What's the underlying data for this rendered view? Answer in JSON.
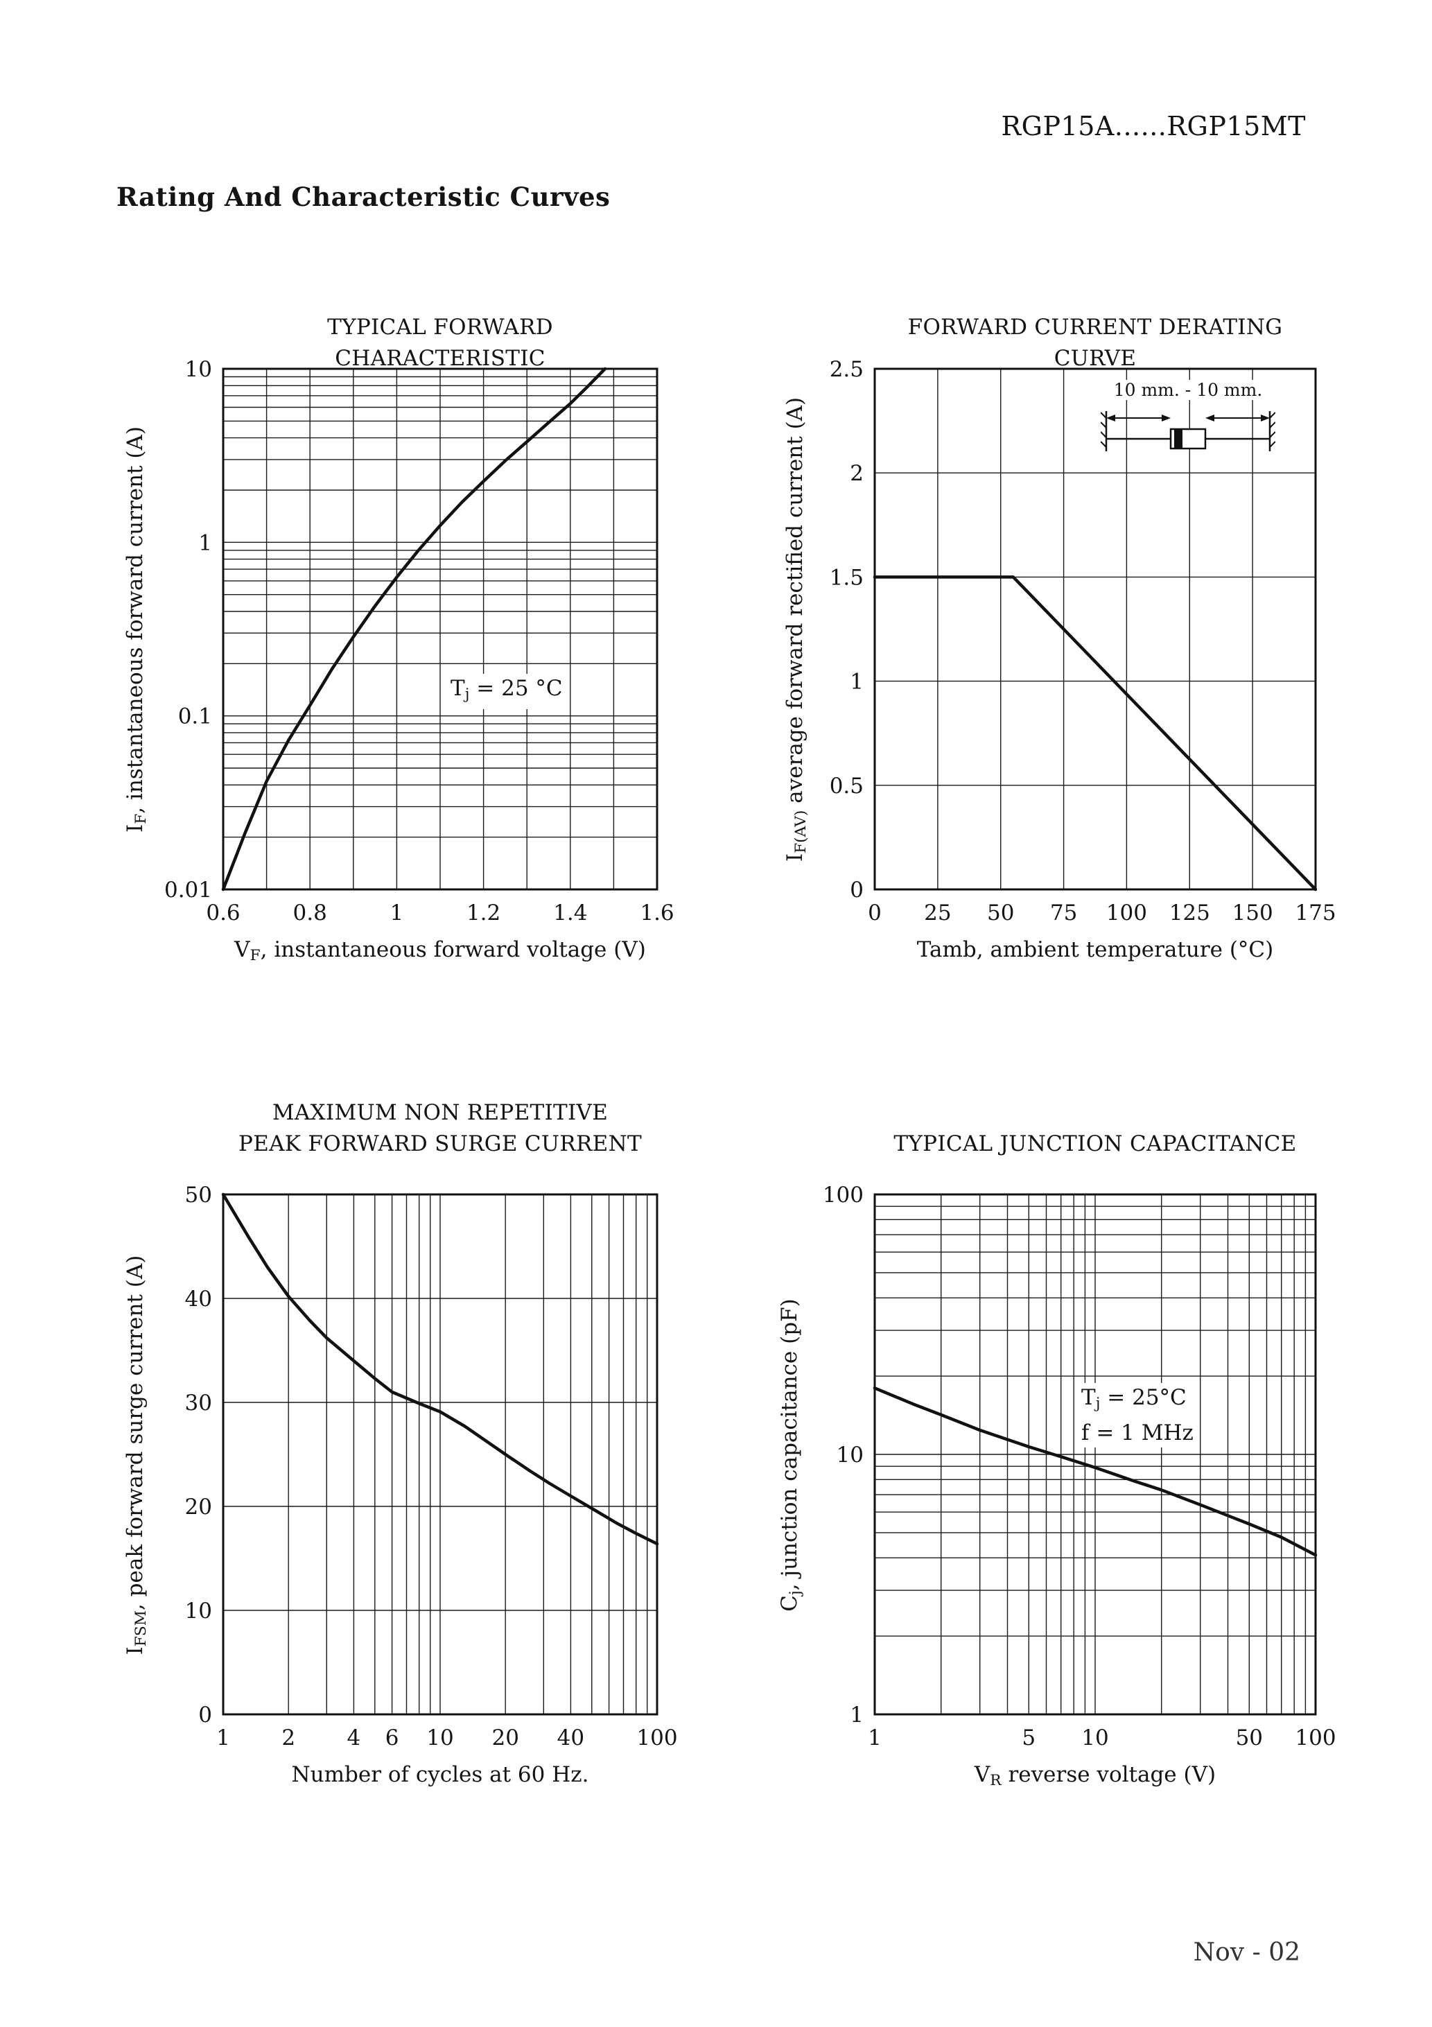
{
  "page": {
    "header": "RGP15A......RGP15MT",
    "title": "Rating And Characteristic Curves",
    "footer": "Nov - 02"
  },
  "chart_data": [
    {
      "id": "typical-forward-characteristic",
      "type": "line",
      "title": "TYPICAL FORWARD CHARACTERISTIC",
      "xlabel": "VF, instantaneous forward voltage (V)",
      "ylabel": "IF, instantaneous forward current (A)",
      "xlabel_segments": [
        {
          "t": "V"
        },
        {
          "t": "F",
          "sub": true
        },
        {
          "t": ", instantaneous forward voltage  (V)"
        }
      ],
      "ylabel_segments": [
        {
          "t": "I"
        },
        {
          "t": "F",
          "sub": true
        },
        {
          "t": ", instantaneous forward current  (A)"
        }
      ],
      "annotation": [
        {
          "t": "T"
        },
        {
          "t": "j",
          "sub": true
        },
        {
          "t": " = 25 °C"
        }
      ],
      "x": {
        "type": "linear",
        "min": 0.6,
        "max": 1.6,
        "ticks": [
          0.6,
          0.8,
          1,
          1.2,
          1.4,
          1.6
        ],
        "tick_labels": [
          "0.6",
          "0.8",
          "1",
          "1.2",
          "1.4",
          "1.6"
        ],
        "grid": [
          0.7,
          0.8,
          0.9,
          1,
          1.1,
          1.2,
          1.3,
          1.4,
          1.5
        ]
      },
      "y": {
        "type": "log",
        "min": 0.01,
        "max": 10,
        "ticks": [
          0.01,
          0.1,
          1,
          10
        ],
        "tick_labels": [
          "0.01",
          "0.1",
          "1",
          "10"
        ],
        "grid": [
          0.02,
          0.03,
          0.04,
          0.05,
          0.06,
          0.07,
          0.08,
          0.09,
          0.1,
          0.2,
          0.3,
          0.4,
          0.5,
          0.6,
          0.7,
          0.8,
          0.9,
          1,
          2,
          3,
          4,
          5,
          6,
          7,
          8,
          9
        ]
      },
      "series": [
        {
          "name": "instantaneous forward current",
          "points": [
            [
              0.6,
              0.01
            ],
            [
              0.65,
              0.021
            ],
            [
              0.7,
              0.042
            ],
            [
              0.75,
              0.072
            ],
            [
              0.8,
              0.115
            ],
            [
              0.85,
              0.185
            ],
            [
              0.9,
              0.285
            ],
            [
              0.95,
              0.43
            ],
            [
              1.0,
              0.63
            ],
            [
              1.05,
              0.9
            ],
            [
              1.1,
              1.25
            ],
            [
              1.15,
              1.7
            ],
            [
              1.2,
              2.25
            ],
            [
              1.25,
              2.95
            ],
            [
              1.3,
              3.8
            ],
            [
              1.35,
              4.9
            ],
            [
              1.4,
              6.3
            ],
            [
              1.44,
              7.9
            ],
            [
              1.48,
              10
            ]
          ]
        }
      ]
    },
    {
      "id": "forward-current-derating-curve",
      "type": "line",
      "title": "FORWARD CURRENT DERATING CURVE",
      "xlabel": "Tamb, ambient temperature (°C)",
      "ylabel": "IF(AV) average forward rectified current (A)",
      "xlabel_segments": [
        {
          "t": "Tamb, ambient temperature (°C)"
        }
      ],
      "ylabel_segments": [
        {
          "t": "I"
        },
        {
          "t": "F(AV)",
          "sub": true
        },
        {
          "t": " average forward rectified current (A)"
        }
      ],
      "inset_label": "10 mm. - 10 mm.",
      "x": {
        "type": "linear",
        "min": 0,
        "max": 175,
        "ticks": [
          0,
          25,
          50,
          75,
          100,
          125,
          150,
          175
        ],
        "tick_labels": [
          "0",
          "25",
          "50",
          "75",
          "100",
          "125",
          "150",
          "175"
        ],
        "grid": [
          25,
          50,
          75,
          100,
          125,
          150
        ]
      },
      "y": {
        "type": "linear",
        "min": 0,
        "max": 2.5,
        "ticks": [
          0,
          0.5,
          1,
          1.5,
          2,
          2.5
        ],
        "tick_labels": [
          "0",
          "0.5",
          "1",
          "1.5",
          "2",
          "2.5"
        ],
        "grid": [
          0.5,
          1,
          1.5,
          2
        ]
      },
      "series": [
        {
          "name": "average forward rectified current",
          "points": [
            [
              0,
              1.5
            ],
            [
              55,
              1.5
            ],
            [
              175,
              0
            ]
          ]
        }
      ]
    },
    {
      "id": "maximum-non-repetitive-peak-forward-surge-current",
      "type": "line",
      "title": "MAXIMUM NON REPETITIVE",
      "title2": "PEAK FORWARD SURGE CURRENT",
      "xlabel": "Number of cycles at 60 Hz.",
      "ylabel": "IFSM, peak forward surge current (A)",
      "xlabel_segments": [
        {
          "t": "Number of cycles at 60 Hz."
        }
      ],
      "ylabel_segments": [
        {
          "t": "I"
        },
        {
          "t": "FSM",
          "sub": true
        },
        {
          "t": ", peak forward surge current (A)"
        }
      ],
      "x": {
        "type": "log",
        "min": 1,
        "max": 100,
        "ticks": [
          1,
          2,
          4,
          6,
          10,
          20,
          40,
          100
        ],
        "tick_labels": [
          "1",
          "2",
          "4",
          "6",
          "10",
          "20",
          "40",
          "100"
        ],
        "grid": [
          2,
          3,
          4,
          5,
          6,
          7,
          8,
          9,
          10,
          20,
          30,
          40,
          50,
          60,
          70,
          80,
          90
        ]
      },
      "y": {
        "type": "linear",
        "min": 0,
        "max": 50,
        "ticks": [
          0,
          10,
          20,
          30,
          40,
          50
        ],
        "tick_labels": [
          "0",
          "10",
          "20",
          "30",
          "40",
          "50"
        ],
        "grid": [
          10,
          20,
          30,
          40
        ]
      },
      "series": [
        {
          "name": "peak forward surge current",
          "points": [
            [
              1,
              50
            ],
            [
              1.3,
              46
            ],
            [
              1.6,
              43
            ],
            [
              2,
              40.2
            ],
            [
              2.5,
              37.9
            ],
            [
              3,
              36.2
            ],
            [
              4,
              34
            ],
            [
              5,
              32.3
            ],
            [
              6,
              31
            ],
            [
              8,
              29.9
            ],
            [
              10,
              29.1
            ],
            [
              13,
              27.7
            ],
            [
              16,
              26.4
            ],
            [
              20,
              25
            ],
            [
              26,
              23.4
            ],
            [
              32,
              22.2
            ],
            [
              40,
              21
            ],
            [
              52,
              19.6
            ],
            [
              65,
              18.4
            ],
            [
              80,
              17.4
            ],
            [
              100,
              16.4
            ]
          ]
        }
      ]
    },
    {
      "id": "typical-junction-capacitance",
      "type": "line",
      "title": "TYPICAL JUNCTION CAPACITANCE",
      "xlabel": "VR reverse voltage (V)",
      "ylabel": "Cj, junction capacitance (pF)",
      "xlabel_segments": [
        {
          "t": "V"
        },
        {
          "t": "R",
          "sub": true
        },
        {
          "t": " reverse voltage (V)"
        }
      ],
      "ylabel_segments": [
        {
          "t": "C"
        },
        {
          "t": "j",
          "sub": true
        },
        {
          "t": ", junction capacitance (pF)"
        }
      ],
      "annotation": [
        {
          "t": "T"
        },
        {
          "t": "j",
          "sub": true
        },
        {
          "t": " = 25°C"
        }
      ],
      "annotation2": [
        {
          "t": "f = 1 MHz"
        }
      ],
      "x": {
        "type": "log",
        "min": 1,
        "max": 100,
        "ticks": [
          1,
          5,
          10,
          50,
          100
        ],
        "tick_labels": [
          "1",
          "5",
          "10",
          "50",
          "100"
        ],
        "grid": [
          2,
          3,
          4,
          5,
          6,
          7,
          8,
          9,
          10,
          20,
          30,
          40,
          50,
          60,
          70,
          80,
          90
        ]
      },
      "y": {
        "type": "log",
        "min": 1,
        "max": 100,
        "ticks": [
          1,
          10,
          100
        ],
        "tick_labels": [
          "1",
          "10",
          "100"
        ],
        "grid": [
          2,
          3,
          4,
          5,
          6,
          7,
          8,
          9,
          10,
          20,
          30,
          40,
          50,
          60,
          70,
          80,
          90
        ]
      },
      "series": [
        {
          "name": "junction capacitance",
          "points": [
            [
              1,
              18
            ],
            [
              1.5,
              15.6
            ],
            [
              2,
              14.2
            ],
            [
              3,
              12.4
            ],
            [
              5,
              10.7
            ],
            [
              7,
              9.8
            ],
            [
              10,
              8.9
            ],
            [
              15,
              7.9
            ],
            [
              20,
              7.3
            ],
            [
              30,
              6.4
            ],
            [
              50,
              5.4
            ],
            [
              70,
              4.8
            ],
            [
              100,
              4.1
            ]
          ]
        }
      ]
    }
  ]
}
